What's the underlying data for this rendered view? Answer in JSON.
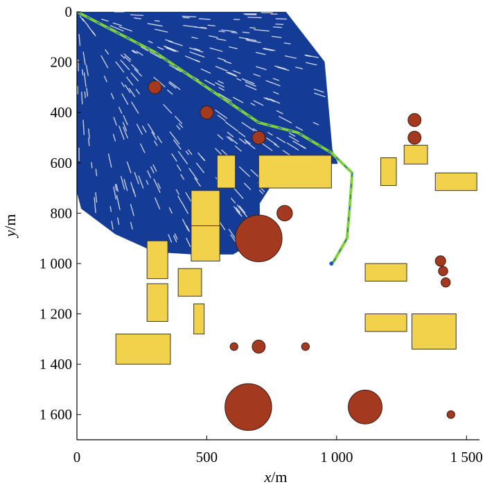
{
  "chart_data": {
    "type": "scatter",
    "title": "",
    "xlabel": {
      "var": "x",
      "unit": "m"
    },
    "ylabel": {
      "var": "y",
      "unit": "m"
    },
    "xlim": [
      0,
      1550
    ],
    "ylim": [
      0,
      1700
    ],
    "y_inverted": true,
    "grid": false,
    "x_ticks": [
      {
        "value": 0,
        "label": "0"
      },
      {
        "value": 500,
        "label": "500"
      },
      {
        "value": 1000,
        "label": "1 000"
      },
      {
        "value": 1500,
        "label": "1 500"
      }
    ],
    "y_ticks": [
      {
        "value": 0,
        "label": "0"
      },
      {
        "value": 200,
        "label": "200"
      },
      {
        "value": 400,
        "label": "400"
      },
      {
        "value": 600,
        "label": "600"
      },
      {
        "value": 800,
        "label": "800"
      },
      {
        "value": 1000,
        "label": "1 000"
      },
      {
        "value": 1200,
        "label": "1 200"
      },
      {
        "value": 1400,
        "label": "1 400"
      },
      {
        "value": 1600,
        "label": "1 600"
      }
    ],
    "explored_region": {
      "color": "#143c96",
      "polygon": [
        [
          0,
          0
        ],
        [
          800,
          0
        ],
        [
          950,
          200
        ],
        [
          980,
          550
        ],
        [
          1000,
          600
        ],
        [
          800,
          600
        ],
        [
          700,
          760
        ],
        [
          700,
          900
        ],
        [
          600,
          960
        ],
        [
          450,
          960
        ],
        [
          300,
          950
        ],
        [
          150,
          880
        ],
        [
          20,
          780
        ],
        [
          0,
          700
        ]
      ]
    },
    "path": {
      "color": "#7fd13b",
      "points": [
        [
          0,
          0
        ],
        [
          300,
          160
        ],
        [
          500,
          300
        ],
        [
          700,
          440
        ],
        [
          850,
          480
        ],
        [
          980,
          560
        ],
        [
          1060,
          640
        ],
        [
          1050,
          780
        ],
        [
          1040,
          900
        ],
        [
          990,
          990
        ],
        [
          980,
          1000
        ]
      ]
    },
    "rect_obstacles": {
      "color": "#f2d14b",
      "items": [
        {
          "x": [
            540,
            610
          ],
          "y": [
            570,
            700
          ]
        },
        {
          "x": [
            700,
            980
          ],
          "y": [
            570,
            700
          ]
        },
        {
          "x": [
            1170,
            1230
          ],
          "y": [
            580,
            690
          ]
        },
        {
          "x": [
            1260,
            1350
          ],
          "y": [
            530,
            605
          ]
        },
        {
          "x": [
            1380,
            1540
          ],
          "y": [
            640,
            710
          ]
        },
        {
          "x": [
            440,
            550
          ],
          "y": [
            710,
            850
          ]
        },
        {
          "x": [
            440,
            550
          ],
          "y": [
            850,
            990
          ]
        },
        {
          "x": [
            270,
            350
          ],
          "y": [
            910,
            1060
          ]
        },
        {
          "x": [
            270,
            350
          ],
          "y": [
            1080,
            1230
          ]
        },
        {
          "x": [
            390,
            480
          ],
          "y": [
            1020,
            1130
          ]
        },
        {
          "x": [
            450,
            490
          ],
          "y": [
            1160,
            1280
          ]
        },
        {
          "x": [
            1110,
            1270
          ],
          "y": [
            1000,
            1070
          ]
        },
        {
          "x": [
            1110,
            1270
          ],
          "y": [
            1200,
            1270
          ]
        },
        {
          "x": [
            1290,
            1460
          ],
          "y": [
            1200,
            1340
          ]
        },
        {
          "x": [
            150,
            360
          ],
          "y": [
            1280,
            1400
          ]
        }
      ]
    },
    "circle_obstacles": {
      "color": "#a33a20",
      "items": [
        {
          "cx": 300,
          "cy": 300,
          "r": 25
        },
        {
          "cx": 500,
          "cy": 400,
          "r": 25
        },
        {
          "cx": 700,
          "cy": 500,
          "r": 25
        },
        {
          "cx": 800,
          "cy": 800,
          "r": 30
        },
        {
          "cx": 700,
          "cy": 900,
          "r": 90
        },
        {
          "cx": 1300,
          "cy": 430,
          "r": 25
        },
        {
          "cx": 1300,
          "cy": 500,
          "r": 25
        },
        {
          "cx": 1400,
          "cy": 990,
          "r": 20
        },
        {
          "cx": 1410,
          "cy": 1030,
          "r": 18
        },
        {
          "cx": 1420,
          "cy": 1075,
          "r": 18
        },
        {
          "cx": 605,
          "cy": 1330,
          "r": 15
        },
        {
          "cx": 700,
          "cy": 1330,
          "r": 25
        },
        {
          "cx": 880,
          "cy": 1330,
          "r": 15
        },
        {
          "cx": 660,
          "cy": 1570,
          "r": 90
        },
        {
          "cx": 1110,
          "cy": 1570,
          "r": 65
        },
        {
          "cx": 1440,
          "cy": 1600,
          "r": 15
        }
      ]
    }
  }
}
